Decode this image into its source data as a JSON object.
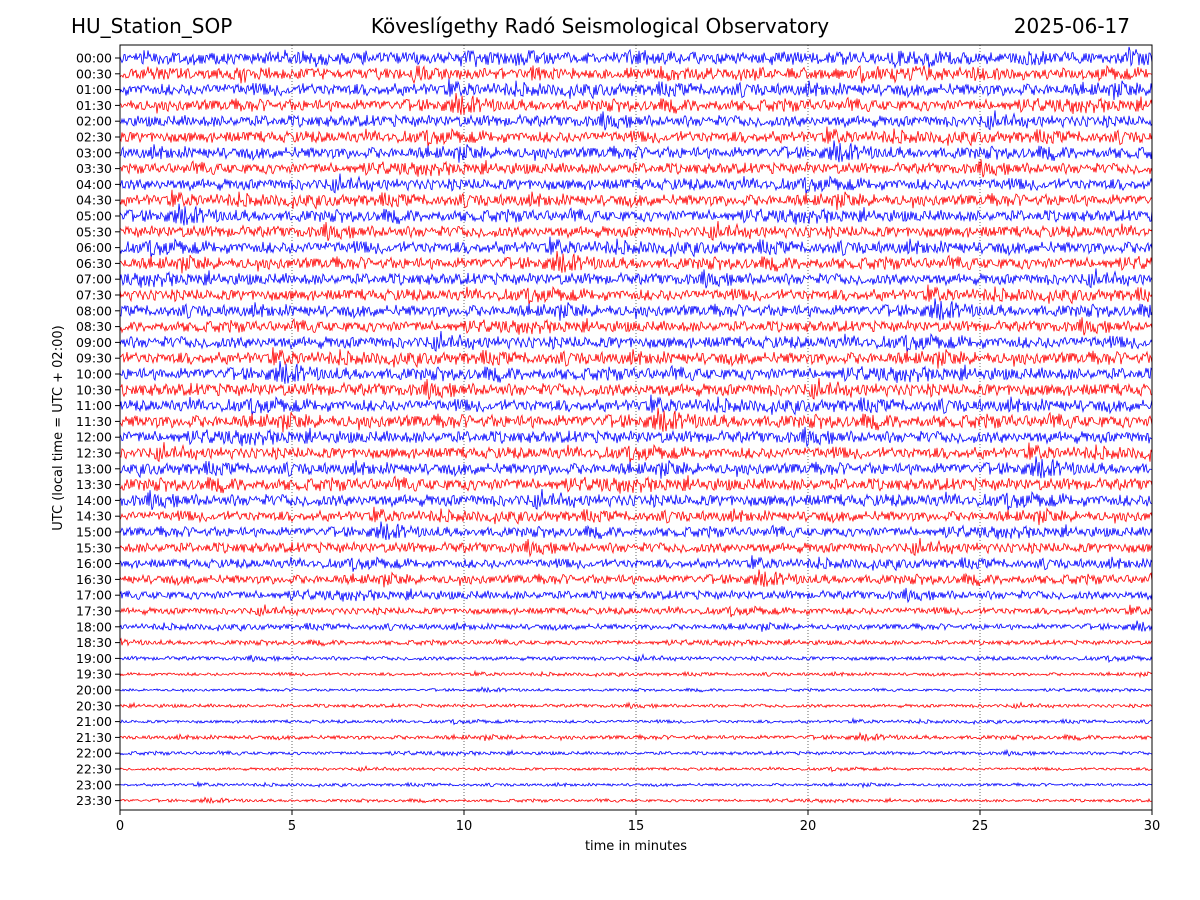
{
  "header": {
    "station": "HU_Station_SOP",
    "title": "Köveslígethy Radó Seismological Observatory",
    "date": "2025-06-17"
  },
  "chart_data": {
    "type": "line",
    "subtype": "helicorder",
    "title": "Köveslígethy Radó Seismological Observatory",
    "station": "HU_Station_SOP",
    "date": "2025-06-17",
    "xlabel": "time in minutes",
    "ylabel": "UTC (local time = UTC + 02:00)",
    "xlim": [
      0,
      30
    ],
    "x_ticks": [
      0,
      5,
      10,
      15,
      20,
      25,
      30
    ],
    "grid": "vertical dotted lines at x ticks",
    "legend": "none",
    "trace_colors": [
      "#0000ff",
      "#ff0000"
    ],
    "rows": [
      {
        "label": "00:00",
        "amp": 0.42
      },
      {
        "label": "00:30",
        "amp": 0.4
      },
      {
        "label": "01:00",
        "amp": 0.42
      },
      {
        "label": "01:30",
        "amp": 0.4
      },
      {
        "label": "02:00",
        "amp": 0.4
      },
      {
        "label": "02:30",
        "amp": 0.4
      },
      {
        "label": "03:00",
        "amp": 0.4
      },
      {
        "label": "03:30",
        "amp": 0.38
      },
      {
        "label": "04:00",
        "amp": 0.4
      },
      {
        "label": "04:30",
        "amp": 0.4
      },
      {
        "label": "05:00",
        "amp": 0.4
      },
      {
        "label": "05:30",
        "amp": 0.4
      },
      {
        "label": "06:00",
        "amp": 0.42
      },
      {
        "label": "06:30",
        "amp": 0.4
      },
      {
        "label": "07:00",
        "amp": 0.4
      },
      {
        "label": "07:30",
        "amp": 0.4
      },
      {
        "label": "08:00",
        "amp": 0.4
      },
      {
        "label": "08:30",
        "amp": 0.38
      },
      {
        "label": "09:00",
        "amp": 0.42
      },
      {
        "label": "09:30",
        "amp": 0.42
      },
      {
        "label": "10:00",
        "amp": 0.42
      },
      {
        "label": "10:30",
        "amp": 0.44
      },
      {
        "label": "11:00",
        "amp": 0.42
      },
      {
        "label": "11:30",
        "amp": 0.44
      },
      {
        "label": "12:00",
        "amp": 0.42
      },
      {
        "label": "12:30",
        "amp": 0.4
      },
      {
        "label": "13:00",
        "amp": 0.4
      },
      {
        "label": "13:30",
        "amp": 0.42
      },
      {
        "label": "14:00",
        "amp": 0.42
      },
      {
        "label": "14:30",
        "amp": 0.36
      },
      {
        "label": "15:00",
        "amp": 0.34
      },
      {
        "label": "15:30",
        "amp": 0.36
      },
      {
        "label": "16:00",
        "amp": 0.32
      },
      {
        "label": "16:30",
        "amp": 0.32
      },
      {
        "label": "17:00",
        "amp": 0.3
      },
      {
        "label": "17:30",
        "amp": 0.24
      },
      {
        "label": "18:00",
        "amp": 0.2
      },
      {
        "label": "18:30",
        "amp": 0.16
      },
      {
        "label": "19:00",
        "amp": 0.14
      },
      {
        "label": "19:30",
        "amp": 0.11
      },
      {
        "label": "20:00",
        "amp": 0.09
      },
      {
        "label": "20:30",
        "amp": 0.12
      },
      {
        "label": "21:00",
        "amp": 0.11
      },
      {
        "label": "21:30",
        "amp": 0.14
      },
      {
        "label": "22:00",
        "amp": 0.12
      },
      {
        "label": "22:30",
        "amp": 0.1
      },
      {
        "label": "23:00",
        "amp": 0.1
      },
      {
        "label": "23:30",
        "amp": 0.1
      }
    ]
  }
}
